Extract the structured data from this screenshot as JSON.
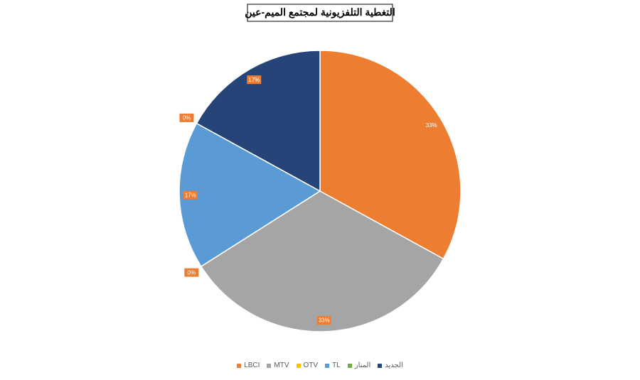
{
  "chart_data": {
    "type": "pie",
    "title": "التغطية التلفزيونية لمجتمع الميم-عين",
    "categories": [
      "LBCI",
      "MTV",
      "OTV",
      "TL",
      "المنار",
      "الجديد"
    ],
    "values": [
      33,
      33,
      0,
      17,
      0,
      17
    ],
    "value_labels": [
      "33%",
      "33%",
      "0%",
      "17%",
      "0%",
      "17%"
    ],
    "colors": [
      "#ED7D31",
      "#A5A5A5",
      "#FFC000",
      "#5B9BD5",
      "#70AD47",
      "#264478"
    ],
    "legend": "bottom"
  }
}
